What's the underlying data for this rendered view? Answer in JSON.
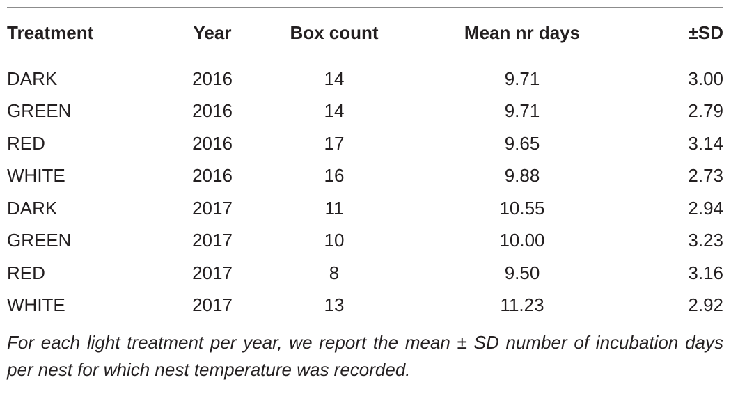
{
  "table": {
    "headers": [
      "Treatment",
      "Year",
      "Box count",
      "Mean nr days",
      "±SD"
    ],
    "rows": [
      [
        "DARK",
        "2016",
        "14",
        "9.71",
        "3.00"
      ],
      [
        "GREEN",
        "2016",
        "14",
        "9.71",
        "2.79"
      ],
      [
        "RED",
        "2016",
        "17",
        "9.65",
        "3.14"
      ],
      [
        "WHITE",
        "2016",
        "16",
        "9.88",
        "2.73"
      ],
      [
        "DARK",
        "2017",
        "11",
        "10.55",
        "2.94"
      ],
      [
        "GREEN",
        "2017",
        "10",
        "10.00",
        "3.23"
      ],
      [
        "RED",
        "2017",
        "8",
        "9.50",
        "3.16"
      ],
      [
        "WHITE",
        "2017",
        "13",
        "11.23",
        "2.92"
      ]
    ]
  },
  "footnote": "For each light treatment per year, we report the mean ± SD number of incubation days per nest for which nest temperature was recorded."
}
